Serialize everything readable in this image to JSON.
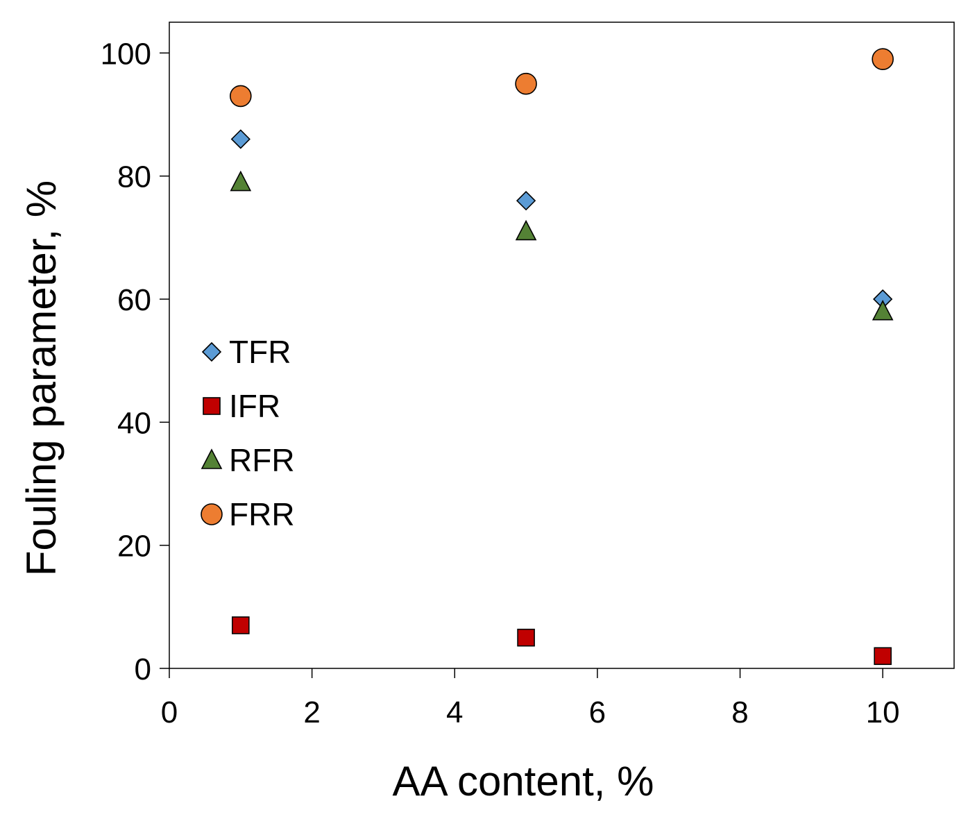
{
  "chart_data": {
    "type": "scatter",
    "title": "",
    "xlabel": "AA content, %",
    "ylabel": "Fouling parameter, %",
    "xlim": [
      0,
      11
    ],
    "ylim": [
      0,
      105
    ],
    "xticks": [
      0,
      2,
      4,
      6,
      8,
      10
    ],
    "yticks": [
      0,
      20,
      40,
      60,
      80,
      100
    ],
    "x_tick_labels": [
      "0",
      "2",
      "4",
      "6",
      "8",
      "10"
    ],
    "y_tick_labels": [
      "0",
      "20",
      "40",
      "60",
      "80",
      "100"
    ],
    "grid": false,
    "legend_position": "middle-left",
    "x": [
      1,
      5,
      10
    ],
    "series": [
      {
        "name": "TFR",
        "marker": "diamond",
        "color": "#5b9bd5",
        "values": [
          86,
          76,
          60
        ]
      },
      {
        "name": "IFR",
        "marker": "square",
        "color": "#c00000",
        "values": [
          7,
          5,
          2
        ]
      },
      {
        "name": "RFR",
        "marker": "triangle",
        "color": "#548235",
        "values": [
          79,
          71,
          58
        ]
      },
      {
        "name": "FRR",
        "marker": "circle",
        "color": "#ed7d31",
        "values": [
          93,
          95,
          99
        ]
      }
    ]
  }
}
